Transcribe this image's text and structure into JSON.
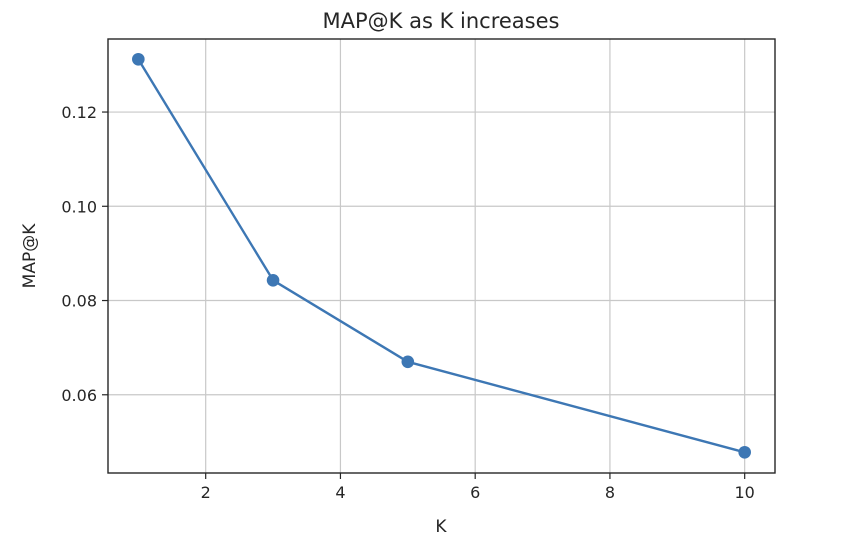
{
  "chart_data": {
    "type": "line",
    "title": "MAP@K as K increases",
    "xlabel": "K",
    "ylabel": "MAP@K",
    "x": [
      1,
      3,
      5,
      10
    ],
    "series": [
      {
        "values": [
          0.1312,
          0.0843,
          0.067,
          0.0478
        ]
      }
    ],
    "xlim": [
      0.55,
      10.45
    ],
    "ylim": [
      0.0434,
      0.1355
    ],
    "xticks": [
      2,
      4,
      6,
      8,
      10
    ],
    "xtick_labels": [
      "2",
      "4",
      "6",
      "8",
      "10"
    ],
    "yticks": [
      0.06,
      0.08,
      0.1,
      0.12
    ],
    "ytick_labels": [
      "0.06",
      "0.08",
      "0.10",
      "0.12"
    ],
    "grid": true,
    "line_color": "#3d77b4",
    "marker": "circle"
  }
}
